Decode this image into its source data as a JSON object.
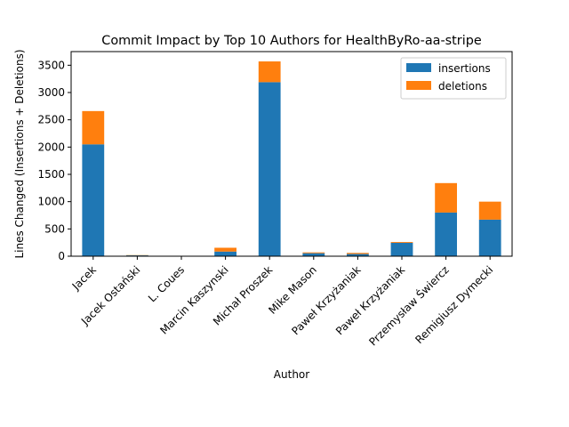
{
  "chart_data": {
    "type": "bar",
    "stacked": true,
    "title": "Commit Impact by Top 10 Authors for HealthByRo-aa-stripe",
    "xlabel": "Author",
    "ylabel": "Lines Changed (Insertions + Deletions)",
    "ylim": [
      0,
      3750
    ],
    "yticks": [
      0,
      500,
      1000,
      1500,
      2000,
      2500,
      3000,
      3500
    ],
    "grid": false,
    "legend_position": "top-right",
    "categories": [
      "Jacek",
      "Jacek Ostański",
      "L. Coues",
      "Marcin Kaszynski",
      "Michał Proszek",
      "Mike Mason",
      "Paweł Krzyżaniak",
      "Paweł Krzyżaniak",
      "Przemysław Świercz",
      "Remigiusz Dymecki"
    ],
    "series": [
      {
        "name": "insertions",
        "color": "#1f77b4",
        "values": [
          2050,
          15,
          2,
          85,
          3190,
          55,
          40,
          245,
          800,
          670
        ]
      },
      {
        "name": "deletions",
        "color": "#ff7f0e",
        "values": [
          610,
          5,
          1,
          70,
          380,
          15,
          20,
          15,
          540,
          330
        ]
      }
    ]
  }
}
